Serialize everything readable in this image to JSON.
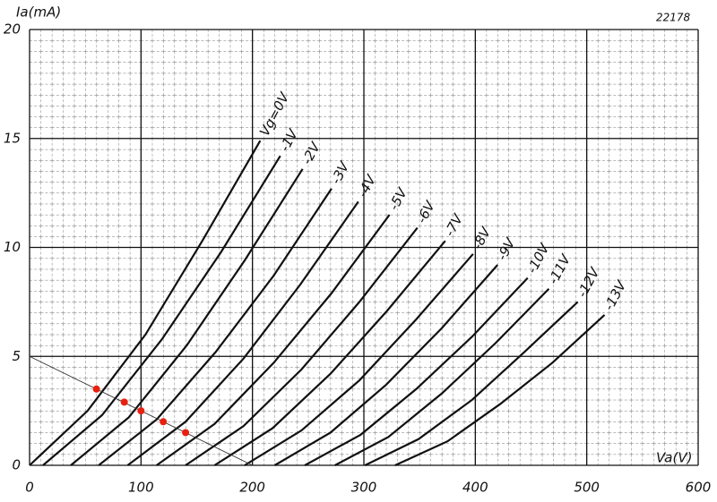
{
  "chart_data": {
    "type": "line",
    "y_label": "Ia(mA)",
    "x_label": "Va(V)",
    "annotation": "22178",
    "xlim": [
      0,
      600
    ],
    "xticks": [
      0,
      100,
      200,
      300,
      400,
      500,
      600
    ],
    "ylim": [
      0,
      20
    ],
    "yticks": [
      0,
      5,
      10,
      15,
      20
    ],
    "grid": true,
    "color": "#111111",
    "series": [
      {
        "name": "Vg=0V",
        "x": [
          0,
          52,
          104,
          155,
          207
        ],
        "values": [
          0,
          2.5,
          6.0,
          10.3,
          14.9
        ]
      },
      {
        "name": "-1V",
        "x": [
          12,
          65,
          119,
          172,
          225
        ],
        "values": [
          0,
          2.3,
          5.8,
          9.8,
          14.2
        ]
      },
      {
        "name": "-2V",
        "x": [
          37,
          89,
          141,
          193,
          245
        ],
        "values": [
          0,
          2.2,
          5.5,
          9.4,
          13.6
        ]
      },
      {
        "name": "-3V",
        "x": [
          62,
          114,
          167,
          219,
          271
        ],
        "values": [
          0,
          2.1,
          5.2,
          8.7,
          12.7
        ]
      },
      {
        "name": "-4V",
        "x": [
          88,
          140,
          192,
          243,
          295
        ],
        "values": [
          0,
          2.0,
          4.9,
          8.3,
          12.1
        ]
      },
      {
        "name": "-5V",
        "x": [
          114,
          166,
          219,
          271,
          323
        ],
        "values": [
          0,
          1.9,
          4.7,
          7.9,
          11.5
        ]
      },
      {
        "name": "-6V",
        "x": [
          140,
          192,
          244,
          296,
          348
        ],
        "values": [
          0,
          1.8,
          4.4,
          7.5,
          10.9
        ]
      },
      {
        "name": "-7V",
        "x": [
          166,
          218,
          270,
          321,
          373
        ],
        "values": [
          0,
          1.7,
          4.2,
          7.1,
          10.3
        ]
      },
      {
        "name": "-8V",
        "x": [
          193,
          244,
          296,
          347,
          398
        ],
        "values": [
          0,
          1.6,
          3.9,
          6.7,
          9.7
        ]
      },
      {
        "name": "-9V",
        "x": [
          220,
          270,
          320,
          370,
          420
        ],
        "values": [
          0,
          1.5,
          3.7,
          6.3,
          9.2
        ]
      },
      {
        "name": "-10V",
        "x": [
          247,
          297,
          347,
          397,
          447
        ],
        "values": [
          0,
          1.4,
          3.5,
          5.9,
          8.6
        ]
      },
      {
        "name": "-11V",
        "x": [
          274,
          322,
          370,
          418,
          466
        ],
        "values": [
          0,
          1.3,
          3.3,
          5.6,
          8.1
        ]
      },
      {
        "name": "-12V",
        "x": [
          301,
          349,
          397,
          444,
          492
        ],
        "values": [
          0,
          1.2,
          3.0,
          5.2,
          7.5
        ]
      },
      {
        "name": "-13V",
        "x": [
          328,
          375,
          422,
          469,
          516
        ],
        "values": [
          0,
          1.1,
          2.8,
          4.7,
          6.9
        ]
      }
    ],
    "load_line": {
      "x": [
        0,
        200
      ],
      "values": [
        5,
        0
      ],
      "color": "#333333"
    },
    "points": {
      "x": [
        60,
        85,
        100,
        120,
        140
      ],
      "values": [
        3.5,
        2.9,
        2.5,
        2.0,
        1.5
      ],
      "color": "#e8200f"
    }
  }
}
